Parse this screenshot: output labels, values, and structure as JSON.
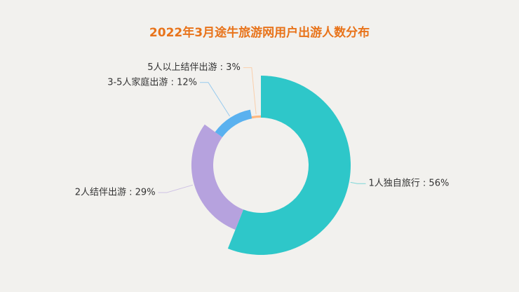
{
  "chart_data": {
    "type": "pie",
    "rose_type": "radius",
    "donut": true,
    "title": "2022年3月途牛旅游网用户出游人数分布",
    "labels": [
      "1人独自旅行 : 56%",
      "2人结伴出游 : 29%",
      "3-5人家庭出游 : 12%",
      "5人以上结伴出游 : 3%"
    ],
    "values": [
      56,
      29,
      12,
      3
    ],
    "colors": [
      "#2ec7c9",
      "#b6a2de",
      "#5ab1ef",
      "#ffb980"
    ]
  }
}
